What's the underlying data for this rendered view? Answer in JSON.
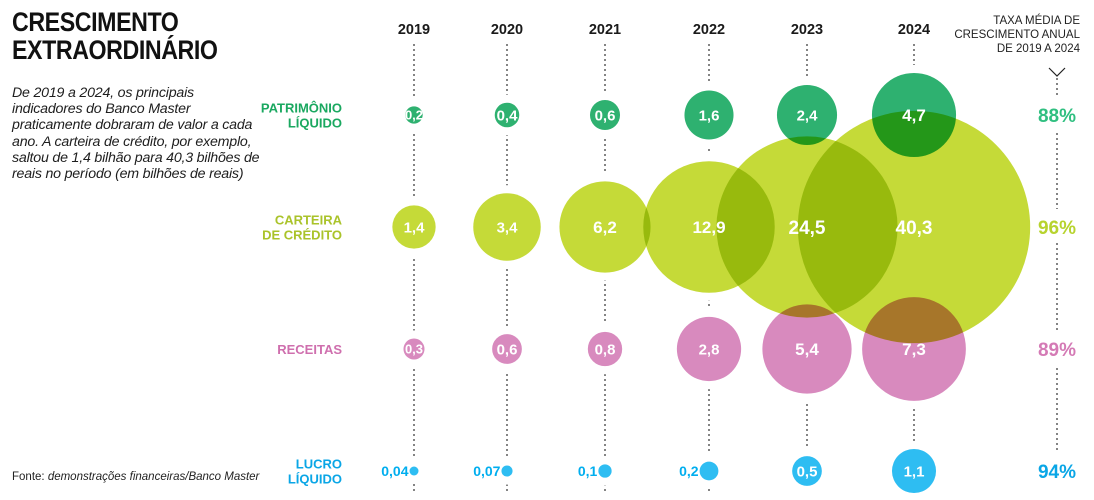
{
  "header": {
    "title_line1": "CRESCIMENTO",
    "title_line2": "EXTRAORDINÁRIO",
    "subtitle": "De 2019 a 2024, os principais indicadores do Banco Master praticamente dobraram de valor a cada ano. A carteira de crédito, por exemplo, saltou de 1,4 bilhão para 40,3 bilhões de reais no período (em bilhões de reais)"
  },
  "source": {
    "prefix": "Fonte: ",
    "text": "demonstrações financeiras/Banco Master"
  },
  "rate_header": [
    "TAXA MÉDIA DE",
    "CRESCIMENTO ANUAL",
    "DE 2019 A 2024"
  ],
  "chart_data": {
    "type": "bubble",
    "title": "Crescimento extraordinário",
    "unit": "bilhões de reais",
    "x": [
      "2019",
      "2020",
      "2021",
      "2022",
      "2023",
      "2024"
    ],
    "series": [
      {
        "name": "PATRIMÔNIO LÍQUIDO",
        "label_lines": [
          "PATRIMÔNIO",
          "LÍQUIDO"
        ],
        "values": [
          0.2,
          0.4,
          0.6,
          1.6,
          2.4,
          4.7
        ],
        "labels": [
          "0,2",
          "0,4",
          "0,6",
          "1,6",
          "2,4",
          "4,7"
        ],
        "cagr": "88%",
        "color": "#00a050",
        "label_color": "#1aa860",
        "rate_color": "#2fbf80"
      },
      {
        "name": "CARTEIRA DE CRÉDITO",
        "label_lines": [
          "CARTEIRA",
          "DE CRÉDITO"
        ],
        "values": [
          1.4,
          3.4,
          6.2,
          12.9,
          24.5,
          40.3
        ],
        "labels": [
          "1,4",
          "3,4",
          "6,2",
          "12,9",
          "24,5",
          "40,3"
        ],
        "cagr": "96%",
        "color": "#b5d000",
        "label_color": "#aac32a",
        "rate_color": "#b7d32e"
      },
      {
        "name": "RECEITAS",
        "label_lines": [
          "RECEITAS"
        ],
        "values": [
          0.3,
          0.6,
          0.8,
          2.8,
          5.4,
          7.3
        ],
        "labels": [
          "0,3",
          "0,6",
          "0,8",
          "2,8",
          "5,4",
          "7,3"
        ],
        "cagr": "89%",
        "color": "#d070b0",
        "label_color": "#cf6fae",
        "rate_color": "#d47ab5"
      },
      {
        "name": "LUCRO LÍQUIDO",
        "label_lines": [
          "LUCRO",
          "LÍQUIDO"
        ],
        "values": [
          0.04,
          0.07,
          0.1,
          0.2,
          0.5,
          1.1
        ],
        "labels": [
          "0,04",
          "0,07",
          "0,1",
          "0,2",
          "0,5",
          "1,1"
        ],
        "cagr": "94%",
        "color": "#00aeef",
        "label_color": "#0aa6e6",
        "rate_color": "#0aa6e6"
      }
    ]
  }
}
